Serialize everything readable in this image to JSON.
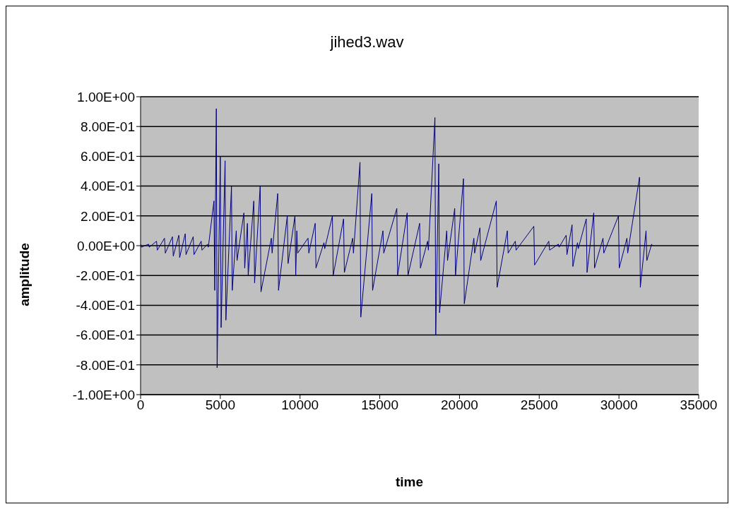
{
  "chart_data": {
    "type": "line",
    "title": "jihed3.wav",
    "xlabel": "time",
    "ylabel": "amplitude",
    "xlim": [
      0,
      35000
    ],
    "xticks": [
      0,
      5000,
      10000,
      15000,
      20000,
      25000,
      30000,
      35000
    ],
    "ylim": [
      -1,
      1
    ],
    "yticks": [
      {
        "value": 1,
        "label": "1.00E+00"
      },
      {
        "value": 0.8,
        "label": "8.00E-01"
      },
      {
        "value": 0.6,
        "label": "6.00E-01"
      },
      {
        "value": 0.4,
        "label": "4.00E-01"
      },
      {
        "value": 0.2,
        "label": "2.00E-01"
      },
      {
        "value": 0,
        "label": "0.00E+00"
      },
      {
        "value": -0.2,
        "label": "-2.00E-01"
      },
      {
        "value": -0.4,
        "label": "-4.00E-01"
      },
      {
        "value": -0.6,
        "label": "-6.00E-01"
      },
      {
        "value": -0.8,
        "label": "-8.00E-01"
      },
      {
        "value": -1,
        "label": "-1.00E+00"
      }
    ],
    "grid": "y",
    "legend": false,
    "marker": "none",
    "line_style": "solid",
    "series": [
      {
        "color": "#000080",
        "x": [
          0,
          50,
          500,
          550,
          1000,
          1050,
          1500,
          1550,
          2000,
          2050,
          2400,
          2450,
          2800,
          2850,
          3300,
          3350,
          3800,
          3850,
          4200,
          4250,
          4600,
          4650,
          4750,
          4800,
          5000,
          5050,
          5300,
          5350,
          5700,
          5750,
          6000,
          6050,
          6480,
          6530,
          6700,
          6750,
          7100,
          7150,
          7500,
          7550,
          8200,
          8250,
          8600,
          8650,
          9200,
          9250,
          9680,
          9730,
          9800,
          9850,
          10500,
          10550,
          10950,
          11000,
          11500,
          11550,
          12030,
          12080,
          12730,
          12780,
          13300,
          13350,
          13760,
          13810,
          14500,
          14550,
          15200,
          15250,
          16070,
          16120,
          16720,
          16770,
          17500,
          17550,
          18000,
          18050,
          18460,
          18510,
          18700,
          18750,
          19200,
          19250,
          19700,
          19750,
          20250,
          20300,
          20900,
          20950,
          21280,
          21330,
          22310,
          22360,
          23000,
          23050,
          23500,
          23550,
          24660,
          24710,
          25600,
          25650,
          26200,
          26250,
          26690,
          26740,
          27060,
          27110,
          27400,
          27450,
          27950,
          28000,
          28420,
          28470,
          29000,
          29050,
          29970,
          30020,
          30500,
          30550,
          31290,
          31340,
          31700,
          31750,
          32050,
          32090
        ],
        "values": [
          0.01,
          -0.01,
          0.01,
          -0.01,
          0.03,
          -0.03,
          0.05,
          -0.05,
          0.06,
          -0.07,
          0.07,
          -0.08,
          0.08,
          -0.06,
          0.06,
          -0.06,
          0.03,
          -0.03,
          0.01,
          -0.01,
          0.3,
          -0.3,
          0.92,
          -0.82,
          0.6,
          -0.55,
          0.57,
          -0.5,
          0.4,
          -0.3,
          0.1,
          -0.1,
          0.22,
          -0.15,
          0.15,
          -0.2,
          0.3,
          -0.25,
          0.4,
          -0.31,
          0.05,
          -0.05,
          0.35,
          -0.3,
          0.2,
          -0.12,
          0.2,
          -0.2,
          0.1,
          -0.05,
          0.05,
          -0.05,
          0.15,
          -0.15,
          0.02,
          -0.02,
          0.2,
          -0.2,
          0.18,
          -0.18,
          0.05,
          -0.05,
          0.56,
          -0.48,
          0.35,
          -0.3,
          0.1,
          -0.05,
          0.25,
          -0.2,
          0.22,
          -0.2,
          0.15,
          -0.15,
          0.03,
          -0.03,
          0.86,
          -0.6,
          0.55,
          -0.45,
          0.1,
          -0.1,
          0.25,
          -0.2,
          0.45,
          -0.39,
          0.05,
          -0.05,
          0.12,
          -0.1,
          0.3,
          -0.28,
          0.1,
          -0.05,
          0.03,
          -0.03,
          0.13,
          -0.13,
          0.03,
          -0.03,
          0.01,
          -0.01,
          0.07,
          -0.06,
          0.14,
          -0.14,
          0.02,
          -0.02,
          0.18,
          -0.18,
          0.22,
          -0.15,
          0.05,
          -0.05,
          0.2,
          -0.15,
          0.05,
          -0.05,
          0.46,
          -0.28,
          0.1,
          -0.1,
          0.01,
          0
        ]
      }
    ]
  }
}
